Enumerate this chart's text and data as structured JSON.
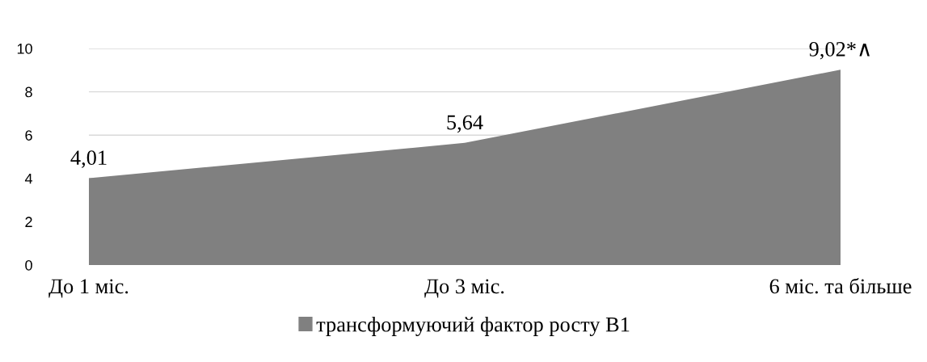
{
  "chart_data": {
    "type": "area",
    "categories": [
      "До 1 міс.",
      "До 3 міс.",
      "6 міс. та більше"
    ],
    "series": [
      {
        "name": "трансформуючий фактор росту В1",
        "color": "#808080",
        "values": [
          4.01,
          5.64,
          9.02
        ],
        "value_labels": [
          "4,01",
          "5,64",
          "9,02*∧"
        ]
      }
    ],
    "ylim": [
      0,
      10
    ],
    "yticks": [
      0,
      2,
      4,
      6,
      8,
      10
    ],
    "grid": "y",
    "legend": "bottom"
  }
}
